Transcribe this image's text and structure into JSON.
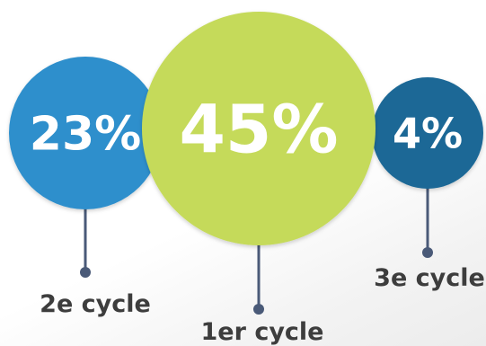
{
  "chart_data": {
    "type": "bubble",
    "title": "",
    "categories": [
      "2e cycle",
      "1er cycle",
      "3e cycle"
    ],
    "values": [
      23,
      45,
      4
    ],
    "value_labels": [
      "23%",
      "45%",
      "4%"
    ],
    "unit": "%",
    "colors": [
      "#2e8fcc",
      "#c5da5a",
      "#1a6896"
    ],
    "connector_color": "#4a5a78",
    "label_color": "#3d3d3d",
    "value_label_color": "#ffffff",
    "legend": "none",
    "grid": false
  }
}
